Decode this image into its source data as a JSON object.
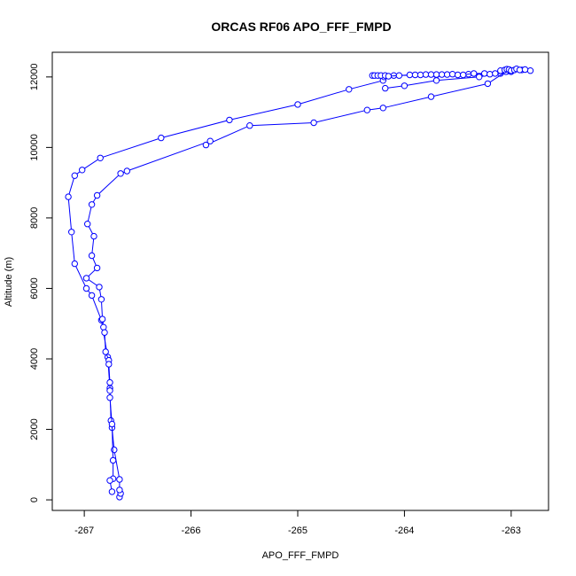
{
  "chart_data": {
    "type": "line",
    "title": "ORCAS RF06 APO_FFF_FMPD",
    "xlabel": "APO_FFF_FMPD",
    "ylabel": "Altitude (m)",
    "xlim": [
      -267.3,
      -262.65
    ],
    "ylim": [
      -300,
      12700
    ],
    "xticks": [
      -267,
      -266,
      -265,
      -264,
      -263
    ],
    "yticks": [
      0,
      2000,
      4000,
      6000,
      8000,
      10000,
      12000
    ],
    "grid": false,
    "legend": "none",
    "colors": {
      "series": "#0000ff",
      "axis": "#000000"
    },
    "marker": "open-circle",
    "series": [
      {
        "points": [
          [
            -266.67,
            80
          ],
          [
            -266.66,
            180
          ],
          [
            -266.67,
            280
          ],
          [
            -266.67,
            580
          ],
          [
            -266.72,
            1420
          ],
          [
            -266.74,
            2050
          ],
          [
            -266.75,
            2250
          ],
          [
            -266.76,
            3170
          ],
          [
            -266.78,
            4050
          ],
          [
            -266.84,
            5100
          ],
          [
            -266.93,
            5800
          ],
          [
            -266.98,
            6000
          ],
          [
            -267.09,
            6700
          ],
          [
            -267.12,
            7600
          ],
          [
            -267.15,
            8600
          ],
          [
            -267.09,
            9200
          ],
          [
            -267.02,
            9360
          ],
          [
            -266.85,
            9700
          ],
          [
            -266.28,
            10270
          ],
          [
            -265.64,
            10780
          ],
          [
            -265.0,
            11220
          ],
          [
            -264.52,
            11650
          ],
          [
            -264.2,
            11900
          ],
          [
            -264.19,
            12000
          ],
          [
            -264.1,
            12040
          ],
          [
            -263.7,
            12060
          ],
          [
            -263.4,
            12080
          ],
          [
            -263.1,
            12100
          ],
          [
            -263.04,
            12160
          ],
          [
            -263.02,
            12200
          ]
        ]
      },
      {
        "points": [
          [
            -263.0,
            12150
          ],
          [
            -263.3,
            12000
          ],
          [
            -263.7,
            11900
          ],
          [
            -264.0,
            11750
          ],
          [
            -264.18,
            11680
          ]
        ]
      },
      {
        "points": [
          [
            -262.82,
            12180
          ],
          [
            -262.9,
            12200
          ],
          [
            -263.05,
            12150
          ],
          [
            -263.22,
            11810
          ],
          [
            -263.75,
            11440
          ],
          [
            -264.2,
            11120
          ],
          [
            -264.35,
            11060
          ],
          [
            -264.85,
            10700
          ],
          [
            -265.45,
            10620
          ],
          [
            -265.86,
            10070
          ],
          [
            -265.82,
            10180
          ],
          [
            -266.6,
            9330
          ],
          [
            -266.66,
            9260
          ],
          [
            -266.88,
            8640
          ],
          [
            -266.93,
            8380
          ],
          [
            -266.97,
            7830
          ],
          [
            -266.91,
            7480
          ],
          [
            -266.93,
            6930
          ],
          [
            -266.88,
            6580
          ],
          [
            -266.98,
            6290
          ],
          [
            -266.86,
            6040
          ],
          [
            -266.84,
            5690
          ],
          [
            -266.83,
            5130
          ],
          [
            -266.82,
            4900
          ],
          [
            -266.81,
            4750
          ],
          [
            -266.8,
            4200
          ],
          [
            -266.77,
            3960
          ],
          [
            -266.77,
            3850
          ],
          [
            -266.76,
            3330
          ],
          [
            -266.76,
            3100
          ],
          [
            -266.76,
            2900
          ],
          [
            -266.74,
            2150
          ],
          [
            -266.73,
            1120
          ],
          [
            -266.73,
            600
          ],
          [
            -266.76,
            550
          ],
          [
            -266.74,
            230
          ]
        ]
      },
      {
        "points": [
          [
            -264.3,
            12040
          ],
          [
            -264.28,
            12040
          ],
          [
            -264.25,
            12040
          ],
          [
            -264.22,
            12040
          ],
          [
            -264.18,
            12040
          ],
          [
            -264.15,
            12020
          ],
          [
            -264.05,
            12040
          ],
          [
            -263.95,
            12060
          ],
          [
            -263.9,
            12060
          ],
          [
            -263.85,
            12060
          ],
          [
            -263.8,
            12070
          ],
          [
            -263.75,
            12070
          ],
          [
            -263.7,
            12070
          ],
          [
            -263.65,
            12070
          ],
          [
            -263.6,
            12070
          ],
          [
            -263.55,
            12080
          ],
          [
            -263.5,
            12060
          ],
          [
            -263.45,
            12060
          ],
          [
            -263.35,
            12100
          ],
          [
            -263.25,
            12100
          ],
          [
            -263.2,
            12080
          ],
          [
            -263.15,
            12100
          ],
          [
            -263.1,
            12180
          ],
          [
            -263.06,
            12200
          ],
          [
            -263.04,
            12220
          ],
          [
            -263.02,
            12210
          ],
          [
            -263.0,
            12180
          ],
          [
            -262.97,
            12200
          ],
          [
            -262.95,
            12230
          ],
          [
            -262.92,
            12200
          ],
          [
            -262.87,
            12210
          ]
        ]
      }
    ]
  }
}
